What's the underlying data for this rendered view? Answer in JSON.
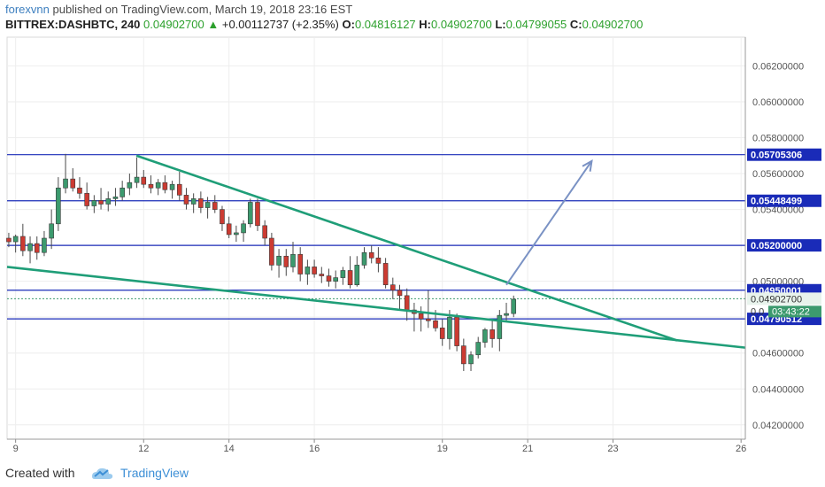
{
  "header": {
    "author": "forexvnn",
    "published_text": " published on TradingView.com, March 19, 2018 23:16 EST",
    "symbol": "BITTREX:DASHBTC, 240",
    "last": "0.04902700",
    "arrow": "▲",
    "change": "+0.00112737 (+2.35%)",
    "o_label": "O:",
    "o_value": "0.04816127",
    "h_label": "H:",
    "h_value": "0.04902700",
    "l_label": "L:",
    "l_value": "0.04799055",
    "c_label": "C:",
    "c_value": "0.04902700"
  },
  "footer": {
    "created_with": "Created with",
    "brand": "TradingView"
  },
  "colors": {
    "up": "#3c9a6e",
    "down": "#cc3b32",
    "level": "#1a2bb8",
    "trend": "#1f9e78",
    "arrow": "#7a92c4",
    "label_bg": "#1a2bb8",
    "price_tag": "#3c9a6e"
  },
  "chart_data": {
    "type": "candlestick",
    "x_tick_labels": [
      "9",
      "12",
      "14",
      "16",
      "19",
      "21",
      "23",
      "26"
    ],
    "x_tick_days": [
      9,
      12,
      14,
      16,
      19,
      21,
      23,
      26
    ],
    "y_tick_labels": [
      "0.04200000",
      "0.04400000",
      "0.04600000",
      "0.04800000",
      "0.05000000",
      "0.05200000",
      "0.05400000",
      "0.05600000",
      "0.05800000",
      "0.06000000",
      "0.06200000"
    ],
    "y_ticks": [
      0.042,
      0.044,
      0.046,
      0.048,
      0.05,
      0.052,
      0.054,
      0.056,
      0.058,
      0.06,
      0.062
    ],
    "ylim": [
      0.0412,
      0.0636
    ],
    "xlim": [
      8.8,
      26.1
    ],
    "grid": true,
    "horizontal_levels": [
      {
        "value": 0.05705306,
        "label": "0.05705306"
      },
      {
        "value": 0.05448499,
        "label": "0.05448499"
      },
      {
        "value": 0.052,
        "label": "0.05200000"
      },
      {
        "value": 0.04950001,
        "label": "0.04950001"
      },
      {
        "value": 0.04790512,
        "label": "0.04790512"
      }
    ],
    "current_price": {
      "value": 0.049027,
      "label": "0.04902700",
      "countdown": "03:43:22",
      "partial_label": "0.0"
    },
    "trendlines": [
      {
        "from": [
          11.83,
          0.057
        ],
        "to": [
          24.5,
          0.0467
        ]
      },
      {
        "from": [
          8.8,
          0.0508
        ],
        "to": [
          26.1,
          0.0463
        ]
      }
    ],
    "arrow": {
      "from": [
        20.5,
        0.0498
      ],
      "to": [
        22.5,
        0.0567
      ]
    },
    "candles": [
      [
        8.84,
        0.0524,
        0.0527,
        0.0519,
        0.0522
      ],
      [
        9.0,
        0.0522,
        0.0526,
        0.0516,
        0.0525
      ],
      [
        9.17,
        0.0525,
        0.0532,
        0.0514,
        0.0517
      ],
      [
        9.34,
        0.0517,
        0.0525,
        0.051,
        0.0521
      ],
      [
        9.5,
        0.0521,
        0.0525,
        0.0512,
        0.0516
      ],
      [
        9.67,
        0.0516,
        0.0528,
        0.0514,
        0.0524
      ],
      [
        9.84,
        0.0524,
        0.054,
        0.0518,
        0.0532
      ],
      [
        10.0,
        0.0532,
        0.0558,
        0.0528,
        0.0552
      ],
      [
        10.17,
        0.0552,
        0.0571,
        0.0549,
        0.0557
      ],
      [
        10.34,
        0.0557,
        0.0563,
        0.055,
        0.0552
      ],
      [
        10.5,
        0.0552,
        0.0558,
        0.0546,
        0.0549
      ],
      [
        10.67,
        0.0549,
        0.0555,
        0.054,
        0.0542
      ],
      [
        10.84,
        0.0542,
        0.0548,
        0.0538,
        0.0545
      ],
      [
        11.0,
        0.0545,
        0.0552,
        0.054,
        0.0543
      ],
      [
        11.17,
        0.0543,
        0.055,
        0.0539,
        0.0546
      ],
      [
        11.34,
        0.0546,
        0.0552,
        0.0542,
        0.0547
      ],
      [
        11.5,
        0.0547,
        0.0556,
        0.0545,
        0.0552
      ],
      [
        11.67,
        0.0552,
        0.056,
        0.0548,
        0.0555
      ],
      [
        11.84,
        0.0555,
        0.0569,
        0.0552,
        0.0558
      ],
      [
        12.0,
        0.0558,
        0.0562,
        0.0552,
        0.0554
      ],
      [
        12.17,
        0.0554,
        0.0559,
        0.0549,
        0.0552
      ],
      [
        12.34,
        0.0552,
        0.0557,
        0.0548,
        0.0555
      ],
      [
        12.5,
        0.0555,
        0.0559,
        0.0549,
        0.0551
      ],
      [
        12.67,
        0.0551,
        0.0556,
        0.0546,
        0.0554
      ],
      [
        12.84,
        0.0554,
        0.0561,
        0.0545,
        0.0548
      ],
      [
        13.0,
        0.0548,
        0.0552,
        0.054,
        0.0543
      ],
      [
        13.17,
        0.0543,
        0.0549,
        0.0538,
        0.0546
      ],
      [
        13.34,
        0.0546,
        0.055,
        0.0538,
        0.0541
      ],
      [
        13.5,
        0.0541,
        0.0547,
        0.0535,
        0.0544
      ],
      [
        13.67,
        0.0544,
        0.0548,
        0.0538,
        0.054
      ],
      [
        13.84,
        0.054,
        0.0542,
        0.0528,
        0.0532
      ],
      [
        14.0,
        0.0532,
        0.0536,
        0.0524,
        0.0526
      ],
      [
        14.17,
        0.0526,
        0.0531,
        0.0522,
        0.0527
      ],
      [
        14.34,
        0.0527,
        0.0534,
        0.0522,
        0.0532
      ],
      [
        14.5,
        0.0532,
        0.0546,
        0.053,
        0.0544
      ],
      [
        14.67,
        0.0544,
        0.0546,
        0.0528,
        0.0531
      ],
      [
        14.84,
        0.0531,
        0.0534,
        0.052,
        0.0524
      ],
      [
        15.0,
        0.0524,
        0.0527,
        0.0506,
        0.0509
      ],
      [
        15.17,
        0.0509,
        0.0518,
        0.0502,
        0.0514
      ],
      [
        15.34,
        0.0514,
        0.0518,
        0.0503,
        0.0508
      ],
      [
        15.5,
        0.0508,
        0.0522,
        0.0505,
        0.0515
      ],
      [
        15.67,
        0.0515,
        0.0519,
        0.05,
        0.0504
      ],
      [
        15.84,
        0.0504,
        0.0512,
        0.0498,
        0.0508
      ],
      [
        16.0,
        0.0508,
        0.0512,
        0.0502,
        0.0504
      ],
      [
        16.17,
        0.0504,
        0.0508,
        0.0499,
        0.0503
      ],
      [
        16.34,
        0.0503,
        0.0507,
        0.0497,
        0.05
      ],
      [
        16.5,
        0.05,
        0.0506,
        0.0496,
        0.0502
      ],
      [
        16.67,
        0.0502,
        0.0508,
        0.0498,
        0.0506
      ],
      [
        16.84,
        0.0506,
        0.0514,
        0.0496,
        0.0498
      ],
      [
        17.0,
        0.0498,
        0.0514,
        0.0497,
        0.0509
      ],
      [
        17.17,
        0.0509,
        0.0519,
        0.0507,
        0.0516
      ],
      [
        17.34,
        0.0516,
        0.052,
        0.051,
        0.0513
      ],
      [
        17.5,
        0.0513,
        0.0519,
        0.0505,
        0.051
      ],
      [
        17.67,
        0.051,
        0.0513,
        0.0496,
        0.0498
      ],
      [
        17.84,
        0.0498,
        0.0502,
        0.049,
        0.0495
      ],
      [
        18.0,
        0.0495,
        0.0498,
        0.0484,
        0.0492
      ],
      [
        18.17,
        0.0492,
        0.0496,
        0.0478,
        0.0484
      ],
      [
        18.34,
        0.0484,
        0.0488,
        0.0472,
        0.0482
      ],
      [
        18.5,
        0.0482,
        0.0486,
        0.0472,
        0.0479
      ],
      [
        18.67,
        0.0479,
        0.0495,
        0.0474,
        0.0478
      ],
      [
        18.84,
        0.0478,
        0.0484,
        0.0472,
        0.0474
      ],
      [
        19.0,
        0.0474,
        0.0479,
        0.0464,
        0.0468
      ],
      [
        19.17,
        0.0468,
        0.0484,
        0.0462,
        0.048
      ],
      [
        19.34,
        0.048,
        0.0482,
        0.0461,
        0.0464
      ],
      [
        19.5,
        0.0464,
        0.0468,
        0.045,
        0.0454
      ],
      [
        19.67,
        0.0454,
        0.0461,
        0.045,
        0.0459
      ],
      [
        19.84,
        0.0459,
        0.0469,
        0.0457,
        0.0466
      ],
      [
        20.0,
        0.0466,
        0.0474,
        0.0463,
        0.0473
      ],
      [
        20.17,
        0.0473,
        0.0478,
        0.0463,
        0.0468
      ],
      [
        20.34,
        0.0468,
        0.0484,
        0.0461,
        0.0481
      ],
      [
        20.5,
        0.0481,
        0.0488,
        0.0478,
        0.0482
      ],
      [
        20.67,
        0.0482,
        0.0492,
        0.048,
        0.049
      ]
    ]
  }
}
